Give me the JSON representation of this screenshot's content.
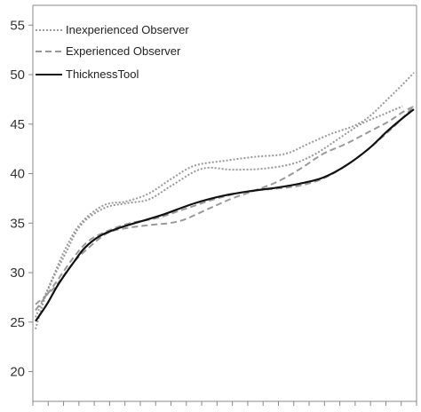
{
  "chart_data": {
    "type": "line",
    "title": "",
    "xlabel": "",
    "ylabel": "",
    "ylim": [
      17,
      57
    ],
    "yticks": [
      20,
      25,
      30,
      35,
      40,
      45,
      50,
      55
    ],
    "ytick_labels": [
      "20",
      "25",
      "30",
      "35",
      "40",
      "45",
      "50",
      "55"
    ],
    "xlim": [
      0,
      1
    ],
    "x_minor_ticks": 26,
    "grid": false,
    "legend_position": "top-left",
    "series": [
      {
        "name": "Inexperienced Observer",
        "style": "dotted",
        "color": "#999999",
        "points": [
          [
            0,
            24.3
          ],
          [
            0.03,
            28
          ],
          [
            0.08,
            32
          ],
          [
            0.12,
            34.8
          ],
          [
            0.18,
            36.5
          ],
          [
            0.24,
            37
          ],
          [
            0.3,
            37.4
          ],
          [
            0.36,
            38.8
          ],
          [
            0.44,
            40.5
          ],
          [
            0.52,
            40.4
          ],
          [
            0.6,
            40.5
          ],
          [
            0.68,
            41
          ],
          [
            0.74,
            42
          ],
          [
            0.8,
            43.5
          ],
          [
            0.86,
            45
          ],
          [
            0.92,
            46
          ],
          [
            0.97,
            46.8
          ]
        ]
      },
      {
        "name": "Inexperienced Observer",
        "style": "dotted",
        "color": "#999999",
        "points": [
          [
            0,
            25.5
          ],
          [
            0.04,
            29
          ],
          [
            0.08,
            32.5
          ],
          [
            0.12,
            35
          ],
          [
            0.18,
            36.8
          ],
          [
            0.24,
            37.2
          ],
          [
            0.3,
            38
          ],
          [
            0.36,
            39.5
          ],
          [
            0.42,
            40.8
          ],
          [
            0.5,
            41.3
          ],
          [
            0.58,
            41.7
          ],
          [
            0.66,
            42
          ],
          [
            0.72,
            43
          ],
          [
            0.78,
            44
          ],
          [
            0.84,
            44.8
          ],
          [
            0.88,
            45.7
          ],
          [
            0.93,
            47.5
          ],
          [
            0.97,
            49
          ],
          [
            1.0,
            50.2
          ]
        ]
      },
      {
        "name": "Experienced Observer",
        "style": "dashed",
        "color": "#999999",
        "points": [
          [
            0,
            26.8
          ],
          [
            0.05,
            28.5
          ],
          [
            0.1,
            31
          ],
          [
            0.14,
            32.5
          ],
          [
            0.19,
            34
          ],
          [
            0.24,
            34.5
          ],
          [
            0.3,
            34.8
          ],
          [
            0.38,
            35.2
          ],
          [
            0.46,
            36.5
          ],
          [
            0.52,
            37.5
          ],
          [
            0.58,
            38.3
          ],
          [
            0.64,
            39.2
          ],
          [
            0.7,
            40.5
          ],
          [
            0.76,
            42
          ],
          [
            0.82,
            43
          ],
          [
            0.88,
            44.2
          ],
          [
            0.93,
            45.2
          ],
          [
            0.97,
            46.2
          ],
          [
            1.0,
            46.8
          ]
        ]
      },
      {
        "name": "Experienced Observer",
        "style": "dashed",
        "color": "#999999",
        "points": [
          [
            0,
            26.2
          ],
          [
            0.05,
            28.8
          ],
          [
            0.1,
            31.5
          ],
          [
            0.14,
            33.2
          ],
          [
            0.19,
            34.2
          ],
          [
            0.25,
            35
          ],
          [
            0.32,
            35.5
          ],
          [
            0.4,
            36.5
          ],
          [
            0.48,
            37.5
          ],
          [
            0.56,
            38.2
          ],
          [
            0.64,
            38.5
          ],
          [
            0.7,
            38.8
          ],
          [
            0.76,
            39.5
          ],
          [
            0.82,
            40.8
          ],
          [
            0.88,
            42.5
          ],
          [
            0.94,
            44.5
          ],
          [
            0.98,
            46
          ],
          [
            1.0,
            46.9
          ]
        ]
      },
      {
        "name": "ThicknessTool",
        "style": "solid",
        "color": "#111111",
        "points": [
          [
            0,
            25.1
          ],
          [
            0.03,
            26.8
          ],
          [
            0.06,
            28.8
          ],
          [
            0.1,
            31
          ],
          [
            0.13,
            32.5
          ],
          [
            0.17,
            33.7
          ],
          [
            0.22,
            34.5
          ],
          [
            0.28,
            35.2
          ],
          [
            0.34,
            35.9
          ],
          [
            0.42,
            37
          ],
          [
            0.5,
            37.8
          ],
          [
            0.58,
            38.3
          ],
          [
            0.64,
            38.6
          ],
          [
            0.7,
            39
          ],
          [
            0.76,
            39.6
          ],
          [
            0.82,
            40.8
          ],
          [
            0.88,
            42.5
          ],
          [
            0.93,
            44.3
          ],
          [
            0.97,
            45.6
          ],
          [
            1.0,
            46.5
          ]
        ]
      }
    ]
  },
  "legend": {
    "items": [
      {
        "label": "Inexperienced Observer",
        "style": "dotted"
      },
      {
        "label": "Experienced Observer",
        "style": "dashed"
      },
      {
        "label": "ThicknessTool",
        "style": "solid"
      }
    ]
  }
}
